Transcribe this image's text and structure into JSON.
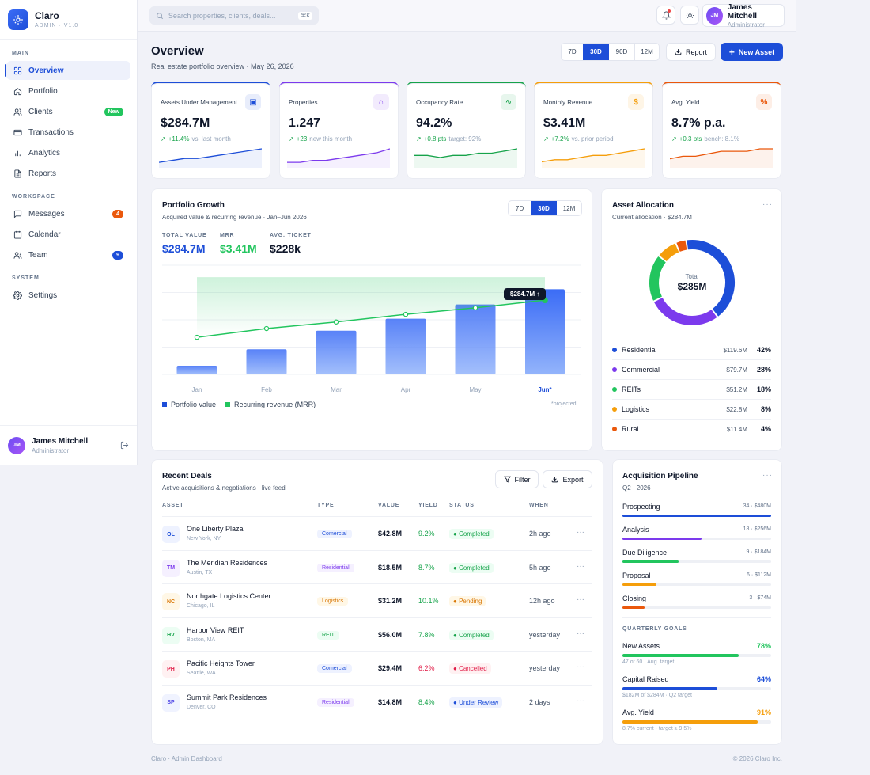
{
  "brand": {
    "name": "Claro",
    "subtitle": "ADMIN · V1.0",
    "accent": "#1d4ed8"
  },
  "sidebar": {
    "sections": {
      "main": "MAIN",
      "workspace": "WORKSPACE",
      "system": "SYSTEM"
    },
    "items": [
      {
        "label": "Overview",
        "icon": "grid-icon"
      },
      {
        "label": "Portfolio",
        "icon": "home-icon"
      },
      {
        "label": "Clients",
        "icon": "users-icon",
        "badge": "New"
      },
      {
        "label": "Transactions",
        "icon": "card-icon"
      },
      {
        "label": "Analytics",
        "icon": "bar-chart-icon"
      },
      {
        "label": "Reports",
        "icon": "document-icon"
      },
      {
        "label": "Messages",
        "icon": "message-icon",
        "badge": "4"
      },
      {
        "label": "Calendar",
        "icon": "calendar-icon"
      },
      {
        "label": "Team",
        "icon": "team-icon",
        "badge": "9"
      },
      {
        "label": "Settings",
        "icon": "gear-icon"
      }
    ],
    "user": {
      "initials": "JM",
      "name": "James Mitchell",
      "role": "Administrator"
    }
  },
  "topbar": {
    "search_placeholder": "Search properties, clients, deals...",
    "shortcut": "⌘K",
    "user": {
      "initials": "JM",
      "name": "James Mitchell",
      "role": "Administrator"
    }
  },
  "page": {
    "title": "Overview",
    "subtitle": "Real estate portfolio overview · May 26, 2026",
    "ranges": [
      "7D",
      "30D",
      "90D",
      "12M"
    ],
    "report_label": "Report",
    "new_asset_label": "New Asset"
  },
  "kpis": [
    {
      "label": "Assets Under Management",
      "value": "$284.7M",
      "delta": "+11.4%",
      "note": "vs. last month",
      "color": "#1d4ed8",
      "spark": [
        2,
        3,
        4,
        4,
        5,
        6,
        7,
        8,
        9
      ]
    },
    {
      "label": "Properties",
      "value": "1.247",
      "delta": "+23",
      "note": "new this month",
      "color": "#7c3aed",
      "spark": [
        2,
        2,
        3,
        3,
        4,
        5,
        6,
        7,
        9
      ]
    },
    {
      "label": "Occupancy Rate",
      "value": "94.2%",
      "delta": "+0.8 pts",
      "note": "target: 92%",
      "color": "#16a34a",
      "spark": [
        5,
        5,
        4,
        5,
        5,
        6,
        6,
        7,
        8
      ]
    },
    {
      "label": "Monthly Revenue",
      "value": "$3.41M",
      "delta": "+7.2%",
      "note": "vs. prior period",
      "color": "#f59e0b",
      "spark": [
        2,
        3,
        3,
        4,
        5,
        5,
        6,
        7,
        8
      ]
    },
    {
      "label": "Avg. Yield",
      "value": "8.7% p.a.",
      "delta": "+0.3 pts",
      "note": "bench: 8.1%",
      "color": "#ea580c",
      "spark": [
        3,
        4,
        4,
        5,
        6,
        6,
        6,
        7,
        7
      ]
    }
  ],
  "growth": {
    "title": "Portfolio Growth",
    "subtitle": "Acquired value & recurring revenue · Jan–Jun 2026",
    "ranges": [
      "7D",
      "30D",
      "12M"
    ],
    "stats": [
      {
        "label": "TOTAL VALUE",
        "value": "$284.7M"
      },
      {
        "label": "MRR",
        "value": "$3.41M"
      },
      {
        "label": "AVG. TICKET",
        "value": "$228k"
      }
    ],
    "tooltip": "$284.7M ↑",
    "projected": "*projected"
  },
  "chart_data": {
    "type": "bar",
    "categories": [
      "Jan",
      "Feb",
      "Mar",
      "Apr",
      "May",
      "Jun*"
    ],
    "series": [
      {
        "name": "Portfolio value",
        "type": "bar",
        "values": [
          8,
          23,
          40,
          51,
          64,
          78
        ],
        "color": "#3b6cf6"
      },
      {
        "name": "Recurring revenue (MRR)",
        "type": "line",
        "values": [
          34,
          42,
          48,
          55,
          61,
          68
        ],
        "color": "#22c55e"
      }
    ],
    "ylim": [
      0,
      100
    ],
    "grid": true,
    "legend": "bottom-left"
  },
  "allocation": {
    "title": "Asset Allocation",
    "subtitle": "Current allocation · $284.7M",
    "center_label": "Total",
    "center_value": "$285M",
    "items": [
      {
        "label": "Residential",
        "amount": "$119.6M",
        "pct": "42%",
        "value": 42,
        "color": "#1d4ed8"
      },
      {
        "label": "Commercial",
        "amount": "$79.7M",
        "pct": "28%",
        "value": 28,
        "color": "#7c3aed"
      },
      {
        "label": "REITs",
        "amount": "$51.2M",
        "pct": "18%",
        "value": 18,
        "color": "#22c55e"
      },
      {
        "label": "Logistics",
        "amount": "$22.8M",
        "pct": "8%",
        "value": 8,
        "color": "#f59e0b"
      },
      {
        "label": "Rural",
        "amount": "$11.4M",
        "pct": "4%",
        "value": 4,
        "color": "#ea580c"
      }
    ]
  },
  "deals": {
    "title": "Recent Deals",
    "subtitle": "Active acquisitions & negotiations · live feed",
    "filter_label": "Filter",
    "export_label": "Export",
    "columns": [
      "ASSET",
      "TYPE",
      "VALUE",
      "YIELD",
      "STATUS",
      "WHEN"
    ],
    "rows": [
      {
        "initials": "OL",
        "name": "One Liberty Plaza",
        "location": "New York, NY",
        "type": "Comercial",
        "value": "$42.8M",
        "yield": "9.2%",
        "status": "Completed",
        "when": "2h ago"
      },
      {
        "initials": "TM",
        "name": "The Meridian Residences",
        "location": "Austin, TX",
        "type": "Residential",
        "value": "$18.5M",
        "yield": "8.7%",
        "status": "Completed",
        "when": "5h ago"
      },
      {
        "initials": "NC",
        "name": "Northgate Logistics Center",
        "location": "Chicago, IL",
        "type": "Logistics",
        "value": "$31.2M",
        "yield": "10.1%",
        "status": "Pending",
        "when": "12h ago"
      },
      {
        "initials": "HV",
        "name": "Harbor View REIT",
        "location": "Boston, MA",
        "type": "REIT",
        "value": "$56.0M",
        "yield": "7.8%",
        "status": "Completed",
        "when": "yesterday"
      },
      {
        "initials": "PH",
        "name": "Pacific Heights Tower",
        "location": "Seattle, WA",
        "type": "Comercial",
        "value": "$29.4M",
        "yield": "6.2%",
        "status": "Cancelled",
        "when": "yesterday"
      },
      {
        "initials": "SP",
        "name": "Summit Park Residences",
        "location": "Denver, CO",
        "type": "Residential",
        "value": "$14.8M",
        "yield": "8.4%",
        "status": "Under Review",
        "when": "2 days"
      }
    ]
  },
  "pipeline": {
    "title": "Acquisition Pipeline",
    "subtitle": "Q2 · 2026",
    "stages": [
      {
        "label": "Prospecting",
        "meta": "34 · $480M",
        "value": 100,
        "color": "#1d4ed8"
      },
      {
        "label": "Analysis",
        "meta": "18 · $256M",
        "value": 53,
        "color": "#7c3aed"
      },
      {
        "label": "Due Diligence",
        "meta": "9 · $184M",
        "value": 38,
        "color": "#22c55e"
      },
      {
        "label": "Proposal",
        "meta": "6 · $112M",
        "value": 23,
        "color": "#f59e0b"
      },
      {
        "label": "Closing",
        "meta": "3 · $74M",
        "value": 15,
        "color": "#ea580c"
      }
    ],
    "goals_label": "QUARTERLY GOALS",
    "goals": [
      {
        "label": "New Assets",
        "pct": "78%",
        "value": 78,
        "note": "47 of 60 · Aug. target",
        "color": "#22c55e"
      },
      {
        "label": "Capital Raised",
        "pct": "64%",
        "value": 64,
        "note": "$182M of $284M · Q2 target",
        "color": "#1d4ed8"
      },
      {
        "label": "Avg. Yield",
        "pct": "91%",
        "value": 91,
        "note": "8.7% current · target ≥ 9.5%",
        "color": "#f59e0b"
      }
    ]
  },
  "footer": {
    "left": "Claro · Admin Dashboard",
    "right": "© 2026 Claro Inc."
  }
}
